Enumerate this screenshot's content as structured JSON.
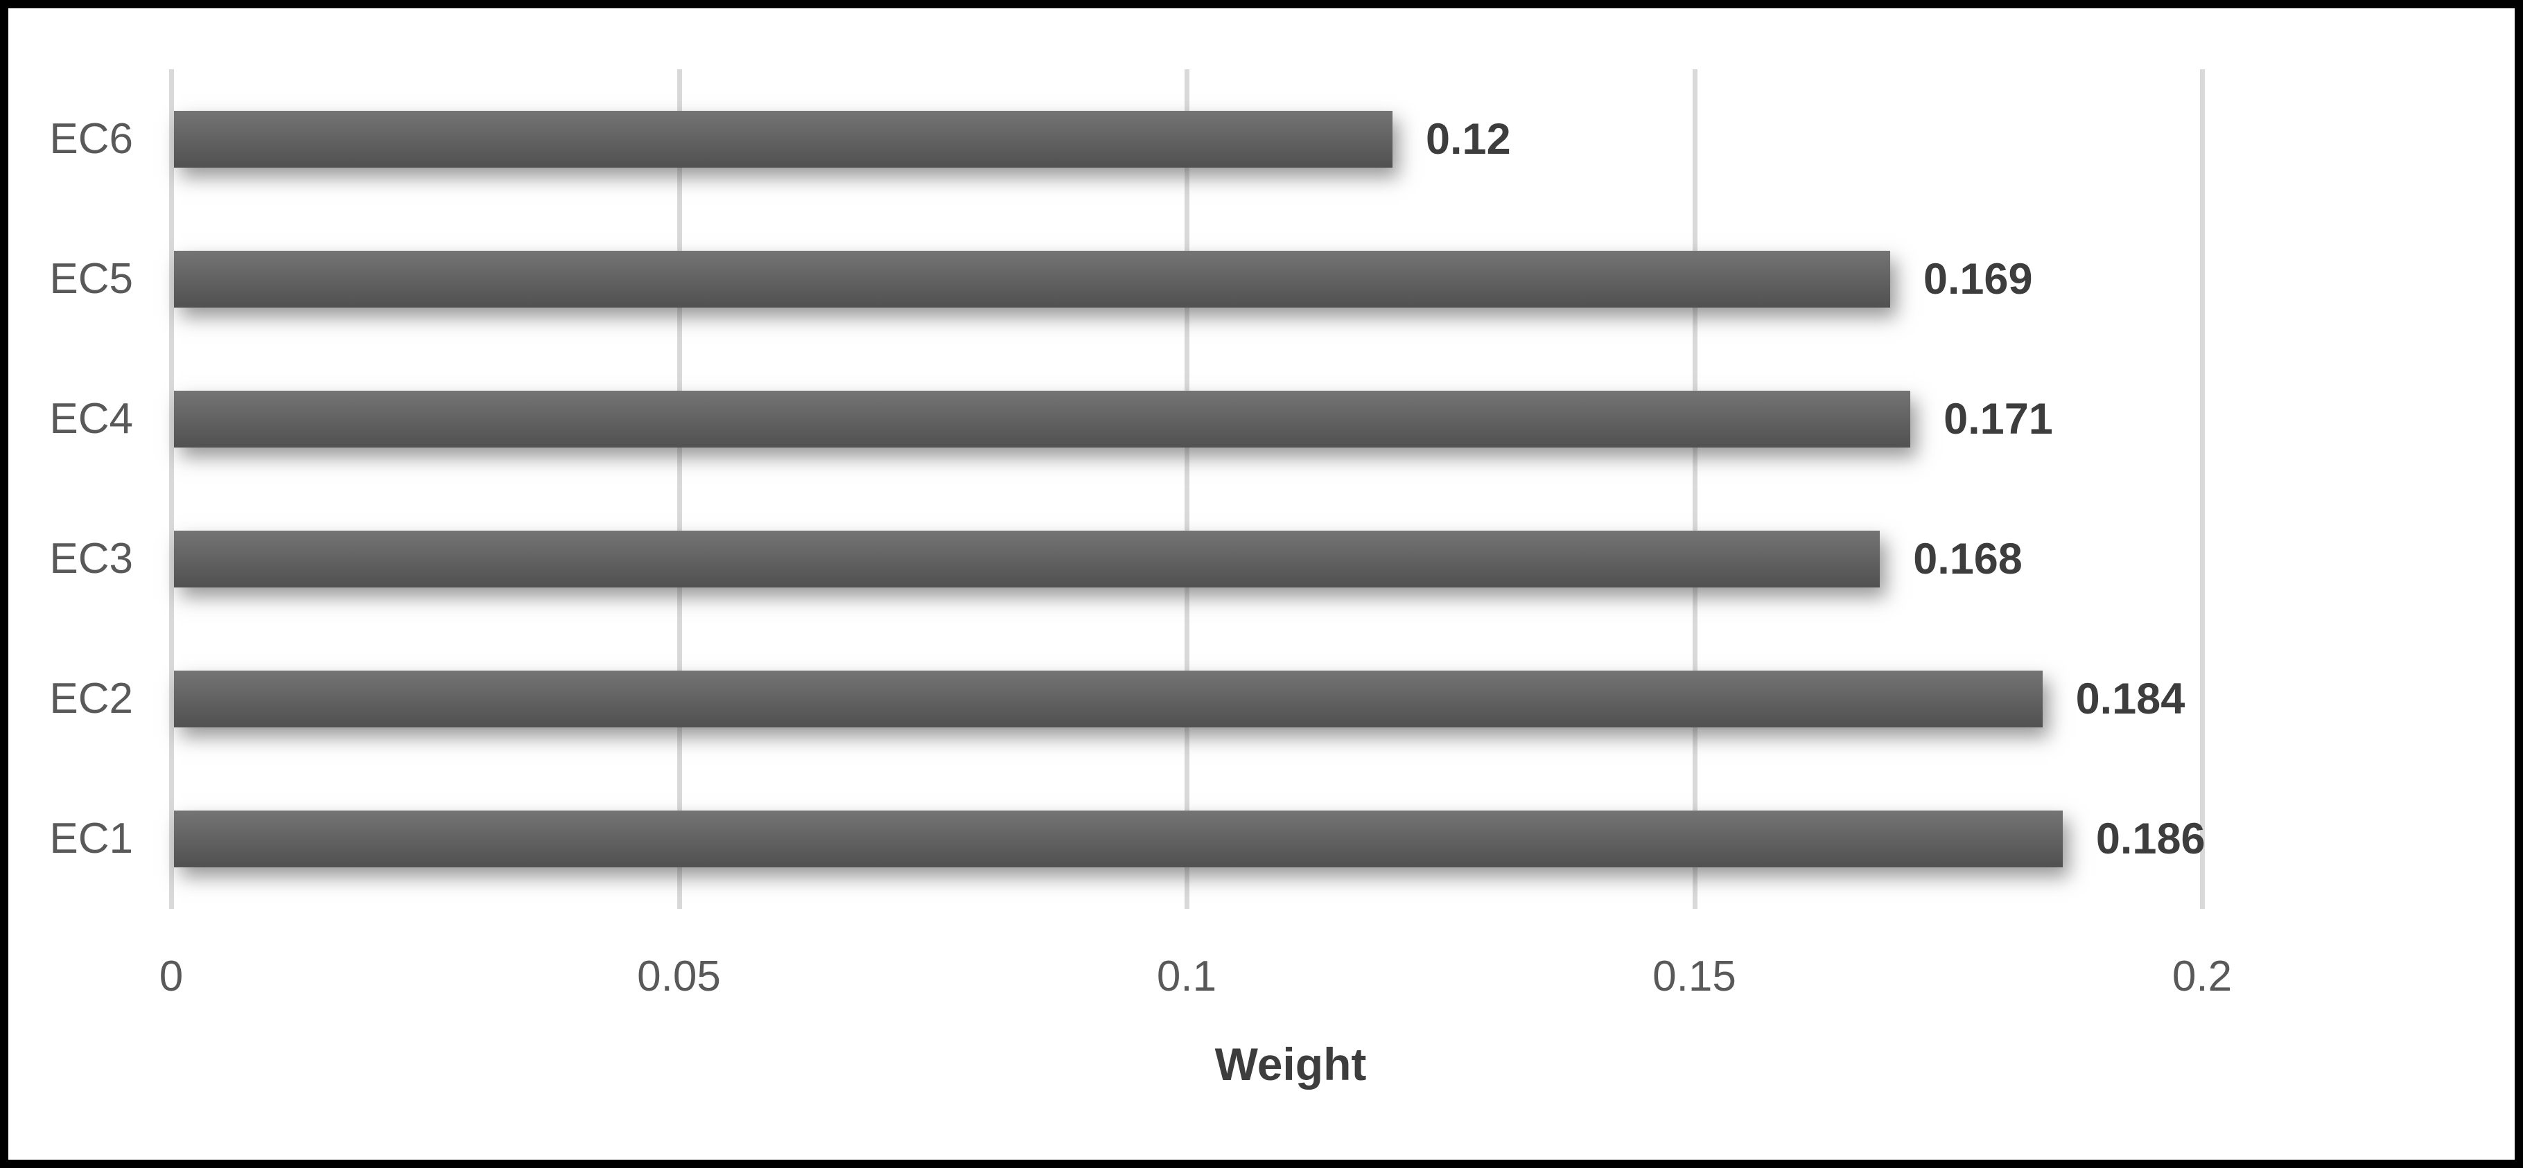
{
  "chart_data": {
    "type": "bar",
    "orientation": "horizontal",
    "title": "",
    "xlabel": "Weight",
    "ylabel": "",
    "categories": [
      "EC1",
      "EC2",
      "EC3",
      "EC4",
      "EC5",
      "EC6"
    ],
    "values": [
      0.186,
      0.184,
      0.168,
      0.171,
      0.169,
      0.12
    ],
    "data_labels": [
      "0.186",
      "0.184",
      "0.168",
      "0.171",
      "0.169",
      "0.12"
    ],
    "category_order_top_to_bottom": [
      "EC6",
      "EC5",
      "EC4",
      "EC3",
      "EC2",
      "EC1"
    ],
    "xlim": [
      0,
      0.2
    ],
    "xticks": [
      0,
      0.05,
      0.1,
      0.15,
      0.2
    ],
    "xtick_labels": [
      "0",
      "0.05",
      "0.1",
      "0.15",
      "0.2"
    ],
    "grid": "vertical-gridlines-on",
    "legend": "none",
    "colors": {
      "bar": "#616161",
      "gridline": "#d9d9d9",
      "tick_text": "#595959",
      "category_text": "#595959",
      "data_label_text": "#3d3d3d",
      "axis_title_text": "#3d3d3d",
      "frame_border": "#000000",
      "background": "#ffffff"
    }
  }
}
